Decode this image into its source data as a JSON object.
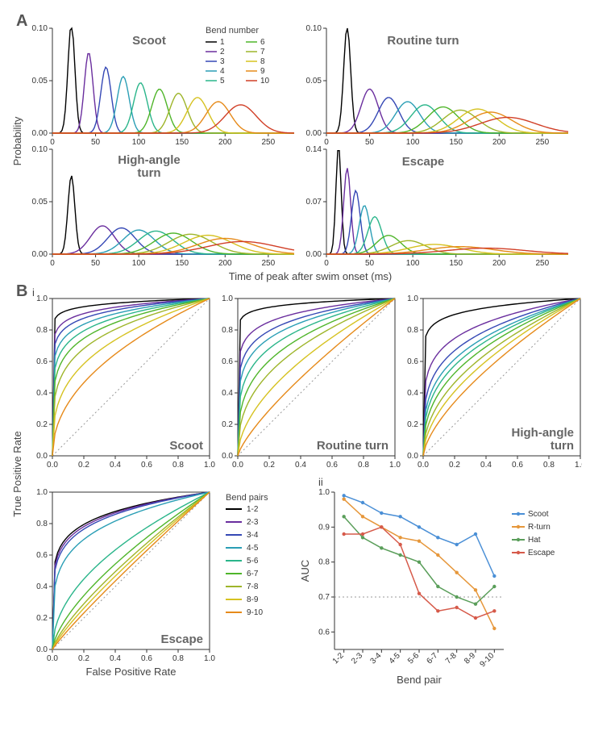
{
  "panelA": {
    "label": "A",
    "xlabel": "Time of peak after swim onset (ms)",
    "ylabel": "Probability",
    "legend_title": "Bend number",
    "bend_colors": {
      "1": "#000000",
      "2": "#6a2e9e",
      "3": "#3548b5",
      "4": "#2a9eb5",
      "5": "#2ab58a",
      "6": "#4fb52a",
      "7": "#9eb52a",
      "8": "#d6c221",
      "9": "#e68a1a",
      "10": "#d13f27"
    },
    "charts": {
      "scoot": {
        "title": "Scoot",
        "xlim": [
          0,
          280
        ],
        "ylim": [
          0,
          0.1
        ],
        "yticks": [
          0.0,
          0.05,
          0.1
        ],
        "xticks": [
          0,
          50,
          100,
          150,
          200,
          250
        ],
        "curves": [
          {
            "mu": 22,
            "sigma": 4,
            "amp": 0.105
          },
          {
            "mu": 42,
            "sigma": 5,
            "amp": 0.077
          },
          {
            "mu": 62,
            "sigma": 6,
            "amp": 0.063
          },
          {
            "mu": 82,
            "sigma": 7,
            "amp": 0.054
          },
          {
            "mu": 102,
            "sigma": 8,
            "amp": 0.048
          },
          {
            "mu": 124,
            "sigma": 9,
            "amp": 0.042
          },
          {
            "mu": 146,
            "sigma": 10,
            "amp": 0.038
          },
          {
            "mu": 168,
            "sigma": 12,
            "amp": 0.034
          },
          {
            "mu": 192,
            "sigma": 14,
            "amp": 0.03
          },
          {
            "mu": 218,
            "sigma": 18,
            "amp": 0.027
          }
        ]
      },
      "routine": {
        "title": "Routine turn",
        "xlim": [
          0,
          280
        ],
        "ylim": [
          0,
          0.1
        ],
        "yticks": [
          0.0,
          0.05,
          0.1
        ],
        "xticks": [
          0,
          50,
          100,
          150,
          200,
          250
        ],
        "curves": [
          {
            "mu": 24,
            "sigma": 4,
            "amp": 0.102
          },
          {
            "mu": 50,
            "sigma": 10,
            "amp": 0.042
          },
          {
            "mu": 72,
            "sigma": 12,
            "amp": 0.034
          },
          {
            "mu": 94,
            "sigma": 14,
            "amp": 0.03
          },
          {
            "mu": 114,
            "sigma": 16,
            "amp": 0.027
          },
          {
            "mu": 135,
            "sigma": 18,
            "amp": 0.025
          },
          {
            "mu": 155,
            "sigma": 20,
            "amp": 0.022
          },
          {
            "mu": 175,
            "sigma": 22,
            "amp": 0.023
          },
          {
            "mu": 190,
            "sigma": 25,
            "amp": 0.02
          },
          {
            "mu": 210,
            "sigma": 32,
            "amp": 0.015
          }
        ]
      },
      "hat": {
        "title": "High-angle turn",
        "title2": "turn",
        "xlim": [
          0,
          280
        ],
        "ylim": [
          0,
          0.1
        ],
        "yticks": [
          0.0,
          0.05,
          0.1
        ],
        "xticks": [
          0,
          50,
          100,
          150,
          200,
          250
        ],
        "curves": [
          {
            "mu": 22,
            "sigma": 4,
            "amp": 0.075
          },
          {
            "mu": 58,
            "sigma": 14,
            "amp": 0.027
          },
          {
            "mu": 80,
            "sigma": 16,
            "amp": 0.025
          },
          {
            "mu": 100,
            "sigma": 18,
            "amp": 0.023
          },
          {
            "mu": 120,
            "sigma": 20,
            "amp": 0.022
          },
          {
            "mu": 140,
            "sigma": 22,
            "amp": 0.02
          },
          {
            "mu": 160,
            "sigma": 25,
            "amp": 0.019
          },
          {
            "mu": 180,
            "sigma": 28,
            "amp": 0.018
          },
          {
            "mu": 200,
            "sigma": 32,
            "amp": 0.015
          },
          {
            "mu": 220,
            "sigma": 40,
            "amp": 0.012
          }
        ]
      },
      "escape": {
        "title": "Escape",
        "xlim": [
          0,
          280
        ],
        "ylim": [
          0,
          0.14
        ],
        "yticks": [
          0.0,
          0.07,
          0.14
        ],
        "xticks": [
          0,
          50,
          100,
          150,
          200,
          250
        ],
        "curves": [
          {
            "mu": 14,
            "sigma": 3,
            "amp": 0.145
          },
          {
            "mu": 24,
            "sigma": 4,
            "amp": 0.115
          },
          {
            "mu": 34,
            "sigma": 5,
            "amp": 0.085
          },
          {
            "mu": 44,
            "sigma": 6,
            "amp": 0.065
          },
          {
            "mu": 56,
            "sigma": 8,
            "amp": 0.05
          },
          {
            "mu": 72,
            "sigma": 14,
            "amp": 0.025
          },
          {
            "mu": 95,
            "sigma": 20,
            "amp": 0.018
          },
          {
            "mu": 125,
            "sigma": 30,
            "amp": 0.013
          },
          {
            "mu": 155,
            "sigma": 38,
            "amp": 0.01
          },
          {
            "mu": 185,
            "sigma": 45,
            "amp": 0.008
          }
        ]
      }
    }
  },
  "panelB": {
    "label": "B",
    "sublabel_i": "i",
    "sublabel_ii": "ii",
    "xlabel": "False Positive Rate",
    "ylabel": "True Positive Rate",
    "legend_title": "Bend pairs",
    "pair_colors": {
      "1-2": "#000000",
      "2-3": "#6a2e9e",
      "3-4": "#3548b5",
      "4-5": "#2a9eb5",
      "5-6": "#2ab58a",
      "6-7": "#4fb52a",
      "7-8": "#9eb52a",
      "8-9": "#d6c221",
      "9-10": "#e68a1a"
    },
    "pair_order": [
      "1-2",
      "2-3",
      "3-4",
      "4-5",
      "5-6",
      "6-7",
      "7-8",
      "8-9",
      "9-10"
    ],
    "roc_xticks": [
      0.0,
      0.2,
      0.4,
      0.6,
      0.8,
      1.0
    ],
    "roc_yticks": [
      0.0,
      0.2,
      0.4,
      0.6,
      0.8,
      1.0
    ],
    "diag_color": "#999999",
    "charts": {
      "scoot": {
        "title": "Scoot",
        "rocs": [
          {
            "k": 30
          },
          {
            "k": 16
          },
          {
            "k": 12
          },
          {
            "k": 9
          },
          {
            "k": 7
          },
          {
            "k": 5.5
          },
          {
            "k": 4.2
          },
          {
            "k": 3.0
          },
          {
            "k": 2.1
          }
        ]
      },
      "routine": {
        "title": "Routine turn",
        "rocs": [
          {
            "k": 28
          },
          {
            "k": 10
          },
          {
            "k": 7
          },
          {
            "k": 5.5
          },
          {
            "k": 4.2
          },
          {
            "k": 3.2
          },
          {
            "k": 2.5
          },
          {
            "k": 1.8
          },
          {
            "k": 1.3
          }
        ]
      },
      "hat": {
        "title": "High-angle turn",
        "rocs": [
          {
            "k": 15
          },
          {
            "k": 5.5
          },
          {
            "k": 4.0
          },
          {
            "k": 3.3
          },
          {
            "k": 2.9
          },
          {
            "k": 2.5
          },
          {
            "k": 2.1
          },
          {
            "k": 1.8
          },
          {
            "k": 1.5
          }
        ]
      },
      "escape": {
        "title": "Escape",
        "rocs": [
          {
            "k": 7
          },
          {
            "k": 6.5
          },
          {
            "k": 6.0
          },
          {
            "k": 4.5
          },
          {
            "k": 2.0
          },
          {
            "k": 1.5
          },
          {
            "k": 1.3
          },
          {
            "k": 1.2
          },
          {
            "k": 1.1
          }
        ]
      }
    },
    "auc_chart": {
      "xlabel": "Bend pair",
      "ylabel": "AUC",
      "ylim": [
        0.55,
        1.0
      ],
      "yticks": [
        0.6,
        0.7,
        0.8,
        0.9,
        1.0
      ],
      "hline": 0.7,
      "categories": [
        "1-2",
        "2-3",
        "3-4",
        "4-5",
        "5-6",
        "6-7",
        "7-8",
        "8-9",
        "9-10"
      ],
      "series_colors": {
        "Scoot": "#4a8fd6",
        "R-turn": "#e6973b",
        "Hat": "#5a9e5a",
        "Escape": "#d65a4a"
      },
      "series": {
        "Scoot": [
          0.99,
          0.97,
          0.94,
          0.93,
          0.9,
          0.87,
          0.85,
          0.88,
          0.76
        ],
        "R-turn": [
          0.98,
          0.93,
          0.9,
          0.87,
          0.86,
          0.82,
          0.77,
          0.72,
          0.61
        ],
        "Hat": [
          0.93,
          0.87,
          0.84,
          0.82,
          0.8,
          0.73,
          0.7,
          0.68,
          0.73
        ],
        "Escape": [
          0.88,
          0.88,
          0.9,
          0.85,
          0.71,
          0.66,
          0.67,
          0.64,
          0.66
        ]
      }
    }
  }
}
